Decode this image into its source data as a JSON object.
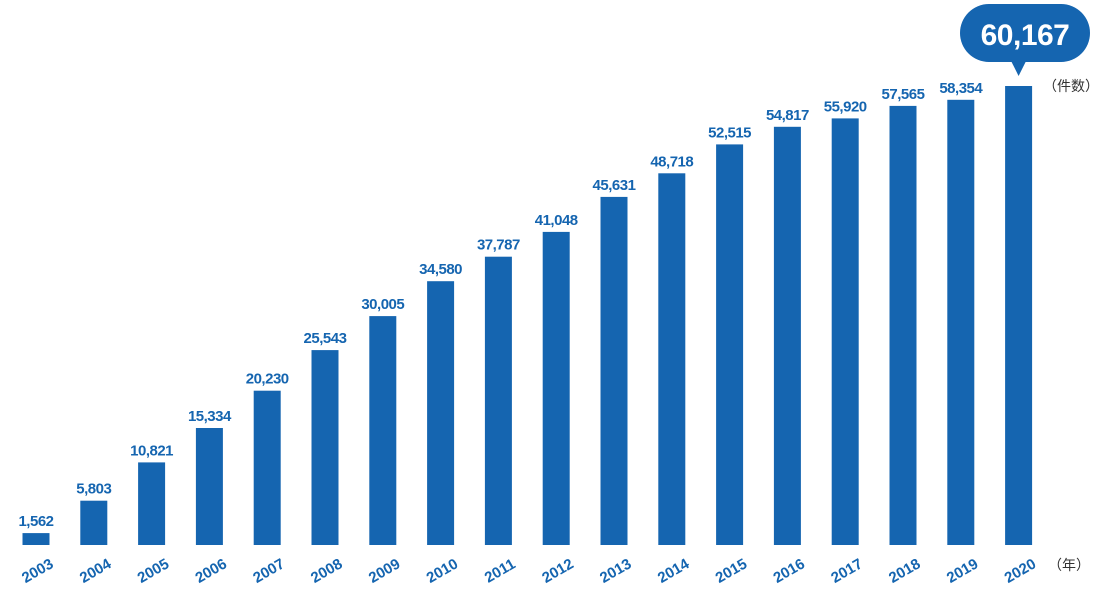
{
  "chart_data": {
    "type": "bar",
    "categories": [
      "2003",
      "2004",
      "2005",
      "2006",
      "2007",
      "2008",
      "2009",
      "2010",
      "2011",
      "2012",
      "2013",
      "2014",
      "2015",
      "2016",
      "2017",
      "2018",
      "2019",
      "2020"
    ],
    "values": [
      1562,
      5803,
      10821,
      15334,
      20230,
      25543,
      30005,
      34580,
      37787,
      41048,
      45631,
      48718,
      52515,
      54817,
      55920,
      57565,
      58354,
      60167
    ],
    "value_labels": [
      "1,562",
      "5,803",
      "10,821",
      "15,334",
      "20,230",
      "25,543",
      "30,005",
      "34,580",
      "37,787",
      "41,048",
      "45,631",
      "48,718",
      "52,515",
      "54,817",
      "55,920",
      "57,565",
      "58,354",
      "60,167"
    ],
    "title": "",
    "xlabel": "",
    "ylabel": "",
    "x_unit": "（年）",
    "y_unit": "（件数）",
    "ylim": [
      0,
      60167
    ],
    "grid": false,
    "highlight": {
      "category": "2020",
      "label": "60,167"
    },
    "colors": {
      "bar": "#1565b0",
      "label": "#1565b0",
      "callout_bg": "#1565b0",
      "callout_text": "#ffffff",
      "tick": "#1565b0",
      "unit": "#333333"
    }
  }
}
